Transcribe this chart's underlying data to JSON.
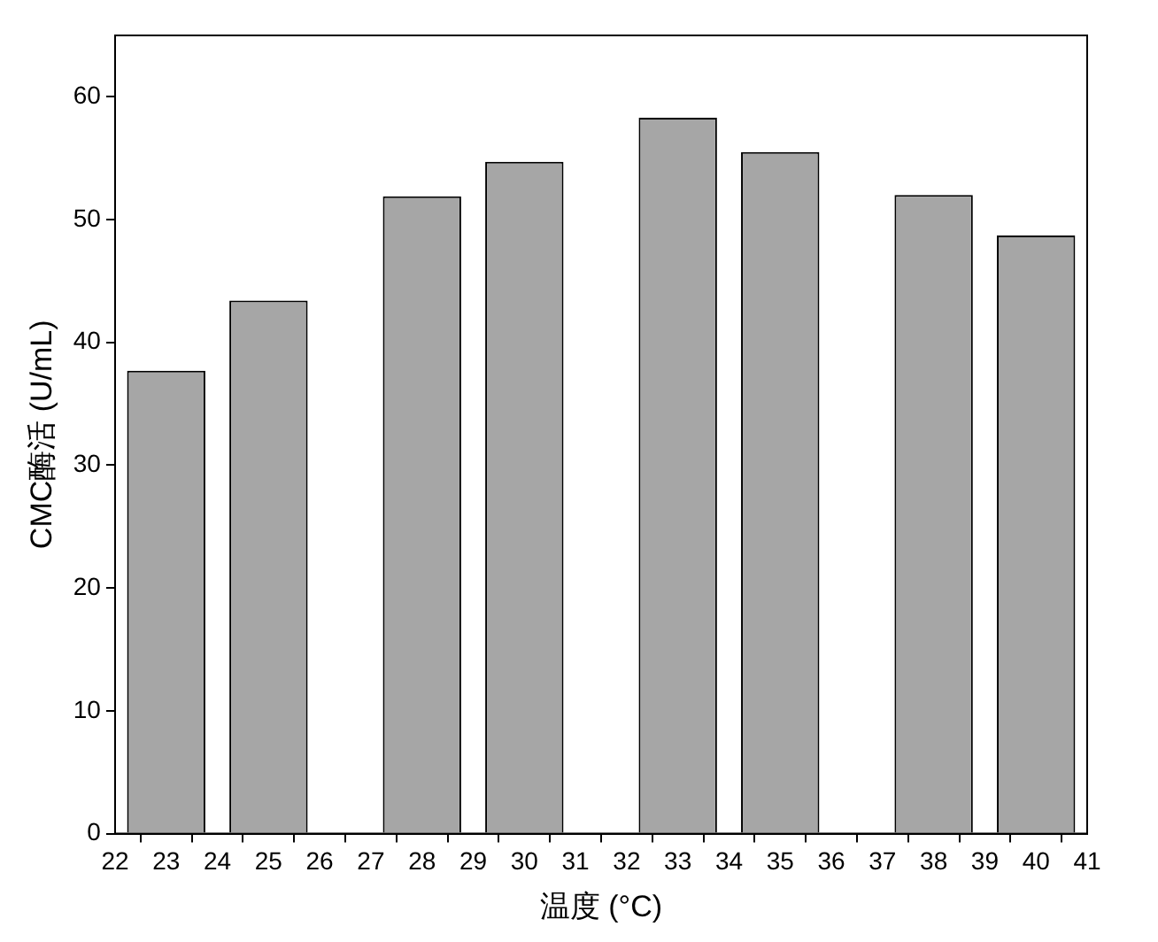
{
  "chart_data": {
    "type": "bar",
    "xlabel": "温度 (°C)",
    "ylabel": "CMC酶活 (U/mL)",
    "x": [
      23,
      25,
      28,
      30,
      33,
      35,
      38,
      40
    ],
    "values": [
      37.7,
      43.4,
      51.9,
      54.7,
      58.3,
      55.5,
      52.0,
      48.7
    ],
    "color": "#a6a6a6",
    "xlim": [
      22,
      41
    ],
    "xticks": [
      22,
      23,
      24,
      25,
      26,
      27,
      28,
      29,
      30,
      31,
      32,
      33,
      34,
      35,
      36,
      37,
      38,
      39,
      40,
      41
    ],
    "ylim": [
      0,
      65
    ],
    "yticks": [
      0,
      10,
      20,
      30,
      40,
      50,
      60
    ],
    "grid": false,
    "legend": false
  }
}
